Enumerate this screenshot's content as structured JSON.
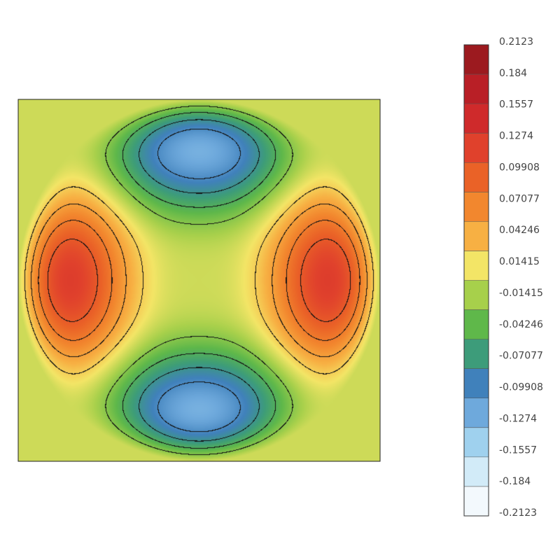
{
  "chart_data": {
    "type": "heatmap",
    "title": "",
    "xlabel": "",
    "ylabel": "",
    "domain": "square with inscribed disk; field is zero outside the disk",
    "field_min": -0.2123,
    "field_max": 0.2123,
    "colorbar": {
      "placement": "right",
      "ticks": [
        "0.2123",
        "0.184",
        "0.1557",
        "0.1274",
        "0.09908",
        "0.07077",
        "0.04246",
        "0.01415",
        "-0.01415",
        "-0.04246",
        "-0.07077",
        "-0.09908",
        "-0.1274",
        "-0.1557",
        "-0.184",
        "-0.2123"
      ],
      "colors": [
        "#9c1a1f",
        "#b91f26",
        "#cf2a2b",
        "#e0412c",
        "#ea6227",
        "#f2872e",
        "#f7b043",
        "#f3e566",
        "#a7d04b",
        "#5fb84a",
        "#3d9c7a",
        "#4081bb",
        "#6ea9dc",
        "#9fd1ee",
        "#d2ebf8",
        "#f3f9fd"
      ]
    },
    "extrema": [
      {
        "location": "left",
        "value": 0.2123
      },
      {
        "location": "right",
        "value": 0.2123
      },
      {
        "location": "top",
        "value": -0.2123
      },
      {
        "location": "bottom",
        "value": -0.2123
      }
    ],
    "contours": true,
    "grid": false
  }
}
